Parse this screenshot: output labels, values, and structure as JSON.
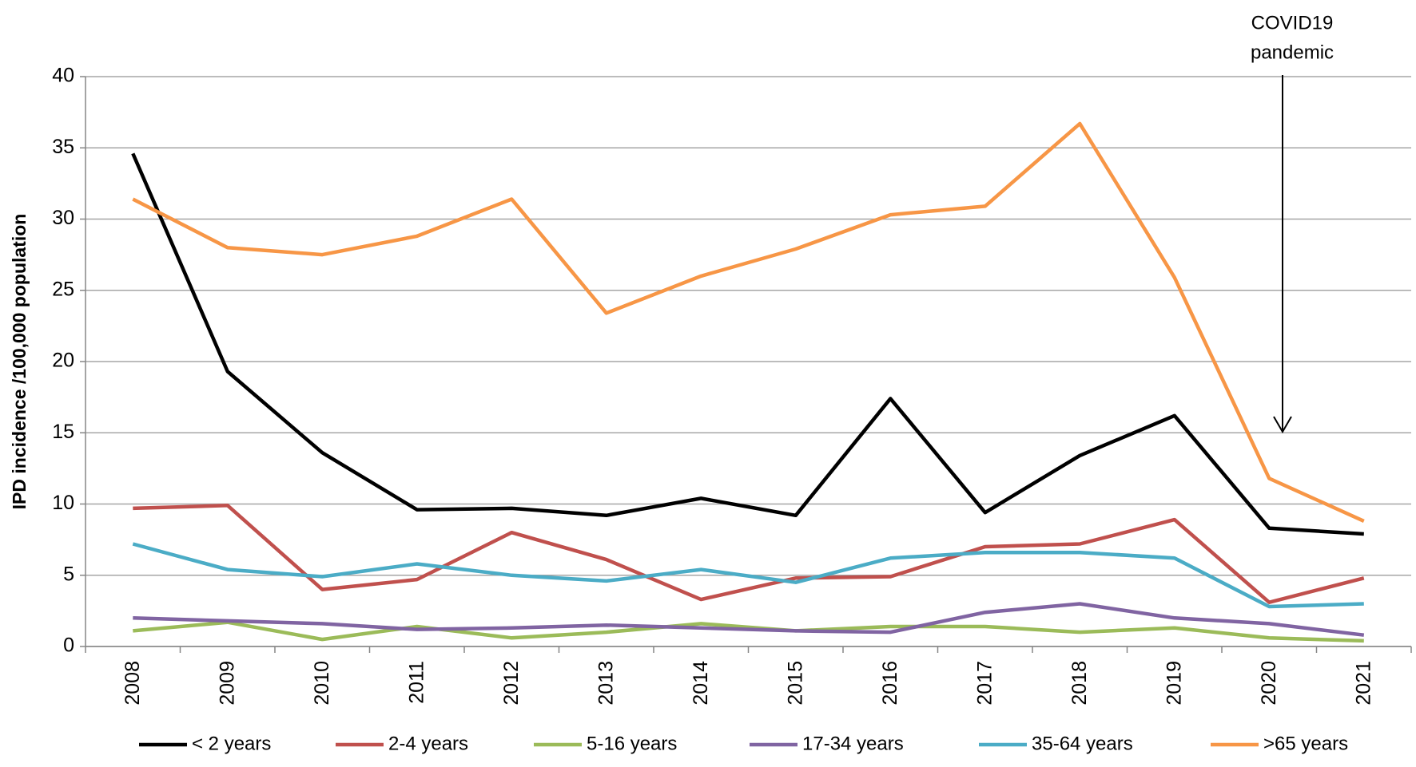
{
  "chart_data": {
    "type": "line",
    "y_label": "IPD incidence /100,000 population",
    "annotation": [
      "COVID19",
      "pandemic"
    ],
    "categories": [
      "2008",
      "2009",
      "2010",
      "2011",
      "2012",
      "2013",
      "2014",
      "2015",
      "2016",
      "2017",
      "2018",
      "2019",
      "2020",
      "2021"
    ],
    "series": [
      {
        "name": "< 2 years",
        "color": "#000000",
        "values": [
          34.6,
          19.3,
          13.6,
          9.6,
          9.7,
          9.2,
          10.4,
          9.2,
          17.4,
          9.4,
          13.4,
          16.2,
          8.3,
          7.9
        ]
      },
      {
        "name": "2-4 years",
        "color": "#c0504d",
        "values": [
          9.7,
          9.9,
          4.0,
          4.7,
          8.0,
          6.1,
          3.3,
          4.8,
          4.9,
          7.0,
          7.2,
          8.9,
          3.1,
          4.8
        ]
      },
      {
        "name": "5-16 years",
        "color": "#9bbb59",
        "values": [
          1.1,
          1.7,
          0.5,
          1.4,
          0.6,
          1.0,
          1.6,
          1.1,
          1.4,
          1.4,
          1.0,
          1.3,
          0.6,
          0.4
        ]
      },
      {
        "name": "17-34 years",
        "color": "#8064a2",
        "values": [
          2.0,
          1.8,
          1.6,
          1.2,
          1.3,
          1.5,
          1.3,
          1.1,
          1.0,
          2.4,
          3.0,
          2.0,
          1.6,
          0.8
        ]
      },
      {
        "name": "35-64 years",
        "color": "#4bacc6",
        "values": [
          7.2,
          5.4,
          4.9,
          5.8,
          5.0,
          4.6,
          5.4,
          4.5,
          6.2,
          6.6,
          6.6,
          6.2,
          2.8,
          3.0
        ]
      },
      {
        "name": ">65 years",
        "color": "#f79646",
        "values": [
          31.4,
          28.0,
          27.5,
          28.8,
          31.4,
          23.4,
          26.0,
          27.9,
          30.3,
          30.9,
          36.7,
          25.9,
          11.8,
          8.8
        ]
      }
    ],
    "ylim": [
      0,
      40
    ],
    "yticks": [
      0,
      5,
      10,
      15,
      20,
      25,
      30,
      35,
      40
    ],
    "grid": true,
    "legend": "bottom"
  }
}
